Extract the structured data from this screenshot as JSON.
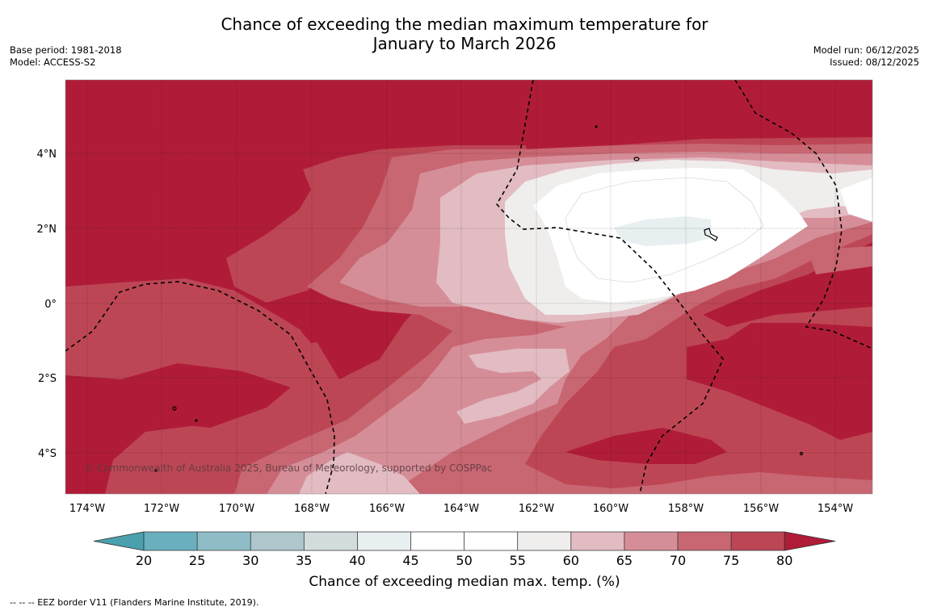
{
  "title": {
    "line1": "Chance of exceeding the median maximum temperature for",
    "line2": "January to March 2026"
  },
  "meta_left": {
    "base_period": "Base period: 1981-2018",
    "model": "Model: ACCESS-S2"
  },
  "meta_right": {
    "model_run": "Model run: 06/12/2025",
    "issued": "Issued: 08/12/2025"
  },
  "map": {
    "lon_labels": [
      "174°W",
      "172°W",
      "170°W",
      "168°W",
      "166°W",
      "164°W",
      "162°W",
      "160°W",
      "158°W",
      "156°W",
      "154°W"
    ],
    "lat_labels": [
      "4°N",
      "2°N",
      "0°",
      "2°S",
      "4°S"
    ],
    "copyright": "© Commonwealth of Australia 2025, Bureau of Meteorology, supported by COSPPac"
  },
  "colorbar": {
    "ticks": [
      "20",
      "25",
      "30",
      "35",
      "40",
      "45",
      "50",
      "55",
      "60",
      "65",
      "70",
      "75",
      "80"
    ],
    "title": "Chance of exceeding median max. temp. (%)",
    "colors": {
      "below20": "#4aa0ad",
      "b20_25": "#6aafbe",
      "b25_30": "#8ebdc8",
      "b30_35": "#adc7cc",
      "b35_40": "#d3dcdc",
      "b40_45": "#e8eff1",
      "b45_50": "#ffffff",
      "b50_55": "#ffffff",
      "b55_60": "#efeeed",
      "b60_65": "#e2bcc2",
      "b65_70": "#d58e98",
      "b70_75": "#c86672",
      "b75_80": "#bd4655",
      "above80": "#b01c38"
    }
  },
  "footer": {
    "legend": "--  --  -- EEZ border V11 (Flanders Marine Institute, 2019)."
  }
}
